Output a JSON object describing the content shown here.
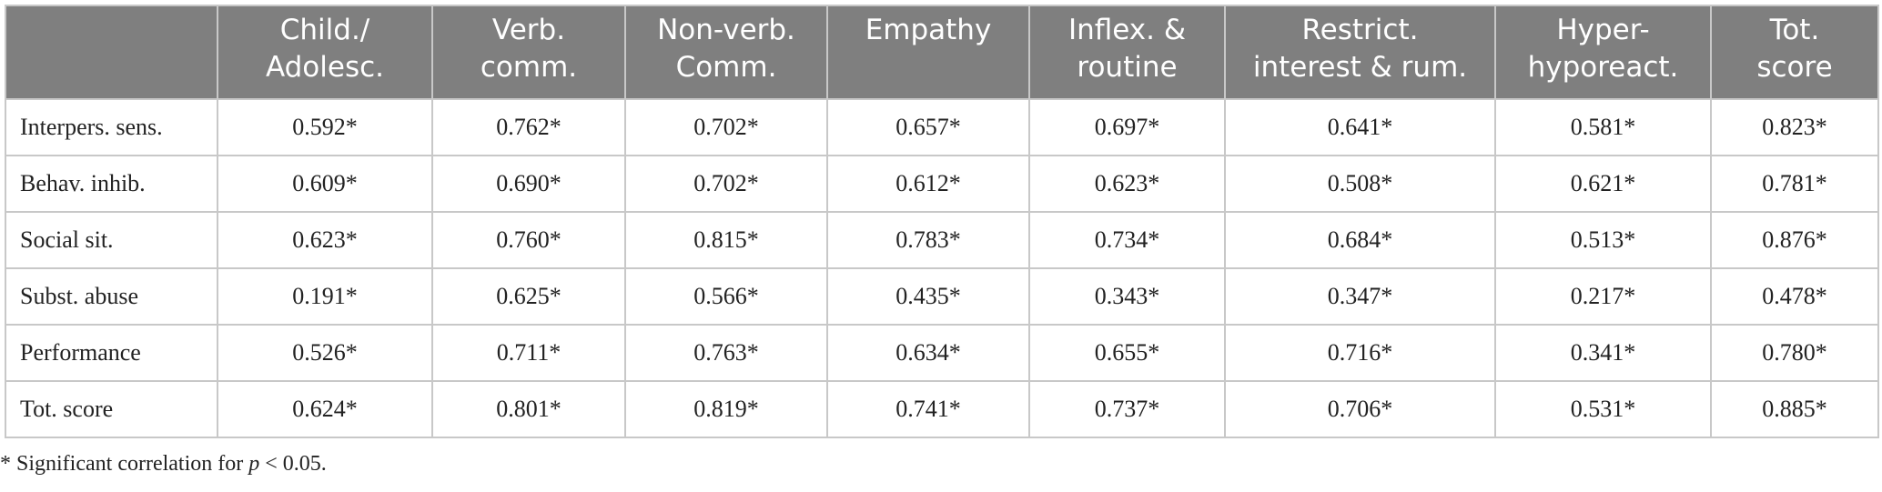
{
  "table": {
    "headers": [
      {
        "lines": [
          "",
          ""
        ]
      },
      {
        "lines": [
          "Child./",
          "Adolesc."
        ]
      },
      {
        "lines": [
          "Verb.",
          "comm."
        ]
      },
      {
        "lines": [
          "Non-verb.",
          "Comm."
        ]
      },
      {
        "lines": [
          "Empathy",
          ""
        ]
      },
      {
        "lines": [
          "Inflex. &",
          "routine"
        ]
      },
      {
        "lines": [
          "Restrict.",
          "interest & rum."
        ]
      },
      {
        "lines": [
          "Hyper-",
          "hyporeact."
        ]
      },
      {
        "lines": [
          "Tot.",
          "score"
        ]
      }
    ],
    "rows": [
      {
        "label": "Interpers. sens.",
        "cells": [
          "0.592*",
          "0.762*",
          "0.702*",
          "0.657*",
          "0.697*",
          "0.641*",
          "0.581*",
          "0.823*"
        ]
      },
      {
        "label": "Behav. inhib.",
        "cells": [
          "0.609*",
          "0.690*",
          "0.702*",
          "0.612*",
          "0.623*",
          "0.508*",
          "0.621*",
          "0.781*"
        ]
      },
      {
        "label": "Social sit.",
        "cells": [
          "0.623*",
          "0.760*",
          "0.815*",
          "0.783*",
          "0.734*",
          "0.684*",
          "0.513*",
          "0.876*"
        ]
      },
      {
        "label": "Subst. abuse",
        "cells": [
          "0.191*",
          "0.625*",
          "0.566*",
          "0.435*",
          "0.343*",
          "0.347*",
          "0.217*",
          "0.478*"
        ]
      },
      {
        "label": "Performance",
        "cells": [
          "0.526*",
          "0.711*",
          "0.763*",
          "0.634*",
          "0.655*",
          "0.716*",
          "0.341*",
          "0.780*"
        ]
      },
      {
        "label": "Tot. score",
        "cells": [
          "0.624*",
          "0.801*",
          "0.819*",
          "0.741*",
          "0.737*",
          "0.706*",
          "0.531*",
          "0.885*"
        ]
      }
    ]
  },
  "footnote": {
    "prefix": "* Significant correlation for ",
    "variable": "p",
    "suffix": " < 0.05."
  }
}
